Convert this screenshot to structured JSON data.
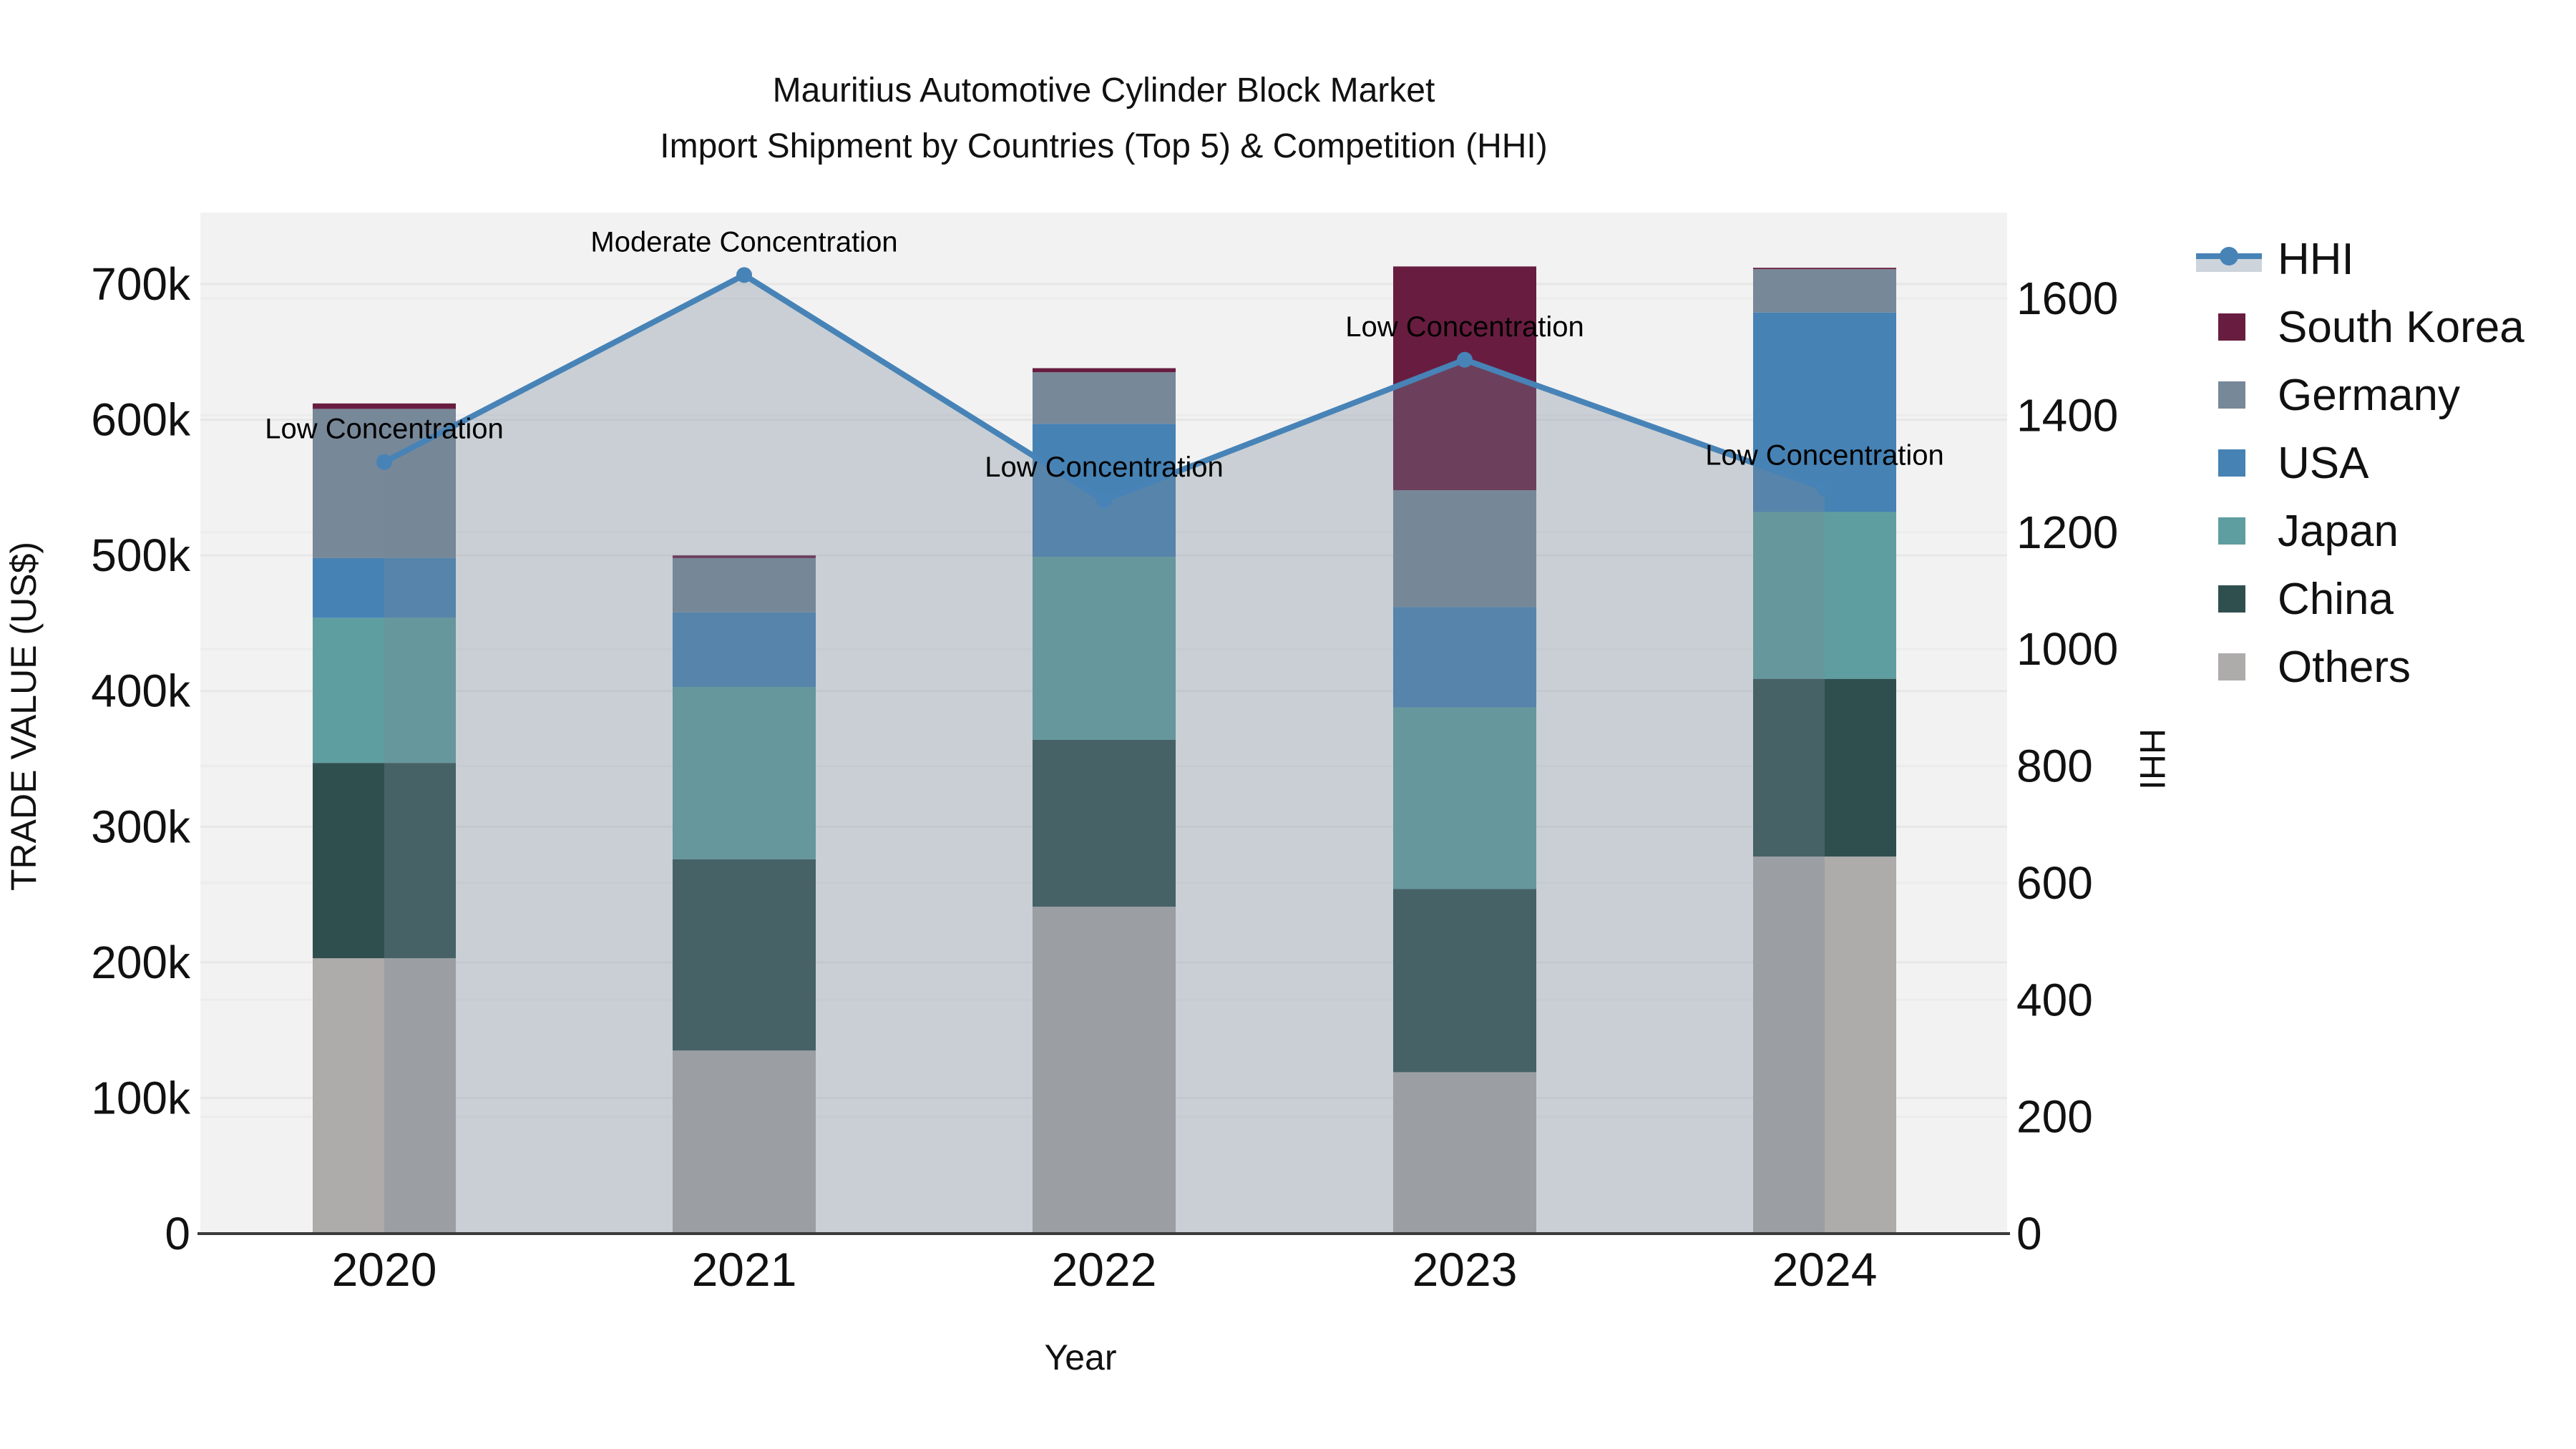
{
  "title": {
    "line1": "Mauritius Automotive Cylinder Block Market",
    "line2": "Import Shipment by Countries (Top 5) & Competition (HHI)"
  },
  "axes": {
    "x_title": "Year",
    "y_left_title": "TRADE VALUE (US$)",
    "y_right_title": "HHI",
    "x_ticks": [
      "2020",
      "2021",
      "2022",
      "2023",
      "2024"
    ],
    "y_left_ticks": [
      {
        "value": 0,
        "label": "0"
      },
      {
        "value": 100000,
        "label": "100k"
      },
      {
        "value": 200000,
        "label": "200k"
      },
      {
        "value": 300000,
        "label": "300k"
      },
      {
        "value": 400000,
        "label": "400k"
      },
      {
        "value": 500000,
        "label": "500k"
      },
      {
        "value": 600000,
        "label": "600k"
      },
      {
        "value": 700000,
        "label": "700k"
      }
    ],
    "y_right_ticks": [
      {
        "value": 0,
        "label": "0"
      },
      {
        "value": 200,
        "label": "200"
      },
      {
        "value": 400,
        "label": "400"
      },
      {
        "value": 600,
        "label": "600"
      },
      {
        "value": 800,
        "label": "800"
      },
      {
        "value": 1000,
        "label": "1000"
      },
      {
        "value": 1200,
        "label": "1200"
      },
      {
        "value": 1400,
        "label": "1400"
      },
      {
        "value": 1600,
        "label": "1600"
      }
    ]
  },
  "chart_data": {
    "type": "bar",
    "stacked": true,
    "categories": [
      "2020",
      "2021",
      "2022",
      "2023",
      "2024"
    ],
    "value_unit": "US$",
    "series": [
      {
        "name": "Others",
        "color": "#aeabab",
        "values": [
          203000,
          135000,
          241000,
          119000,
          278000
        ]
      },
      {
        "name": "China",
        "color": "#2f4f4f",
        "values": [
          144000,
          141000,
          123000,
          135000,
          131000
        ]
      },
      {
        "name": "Japan",
        "color": "#5f9ea0",
        "values": [
          107000,
          127000,
          135000,
          134000,
          123000
        ]
      },
      {
        "name": "USA",
        "color": "#4682b4",
        "values": [
          44000,
          55000,
          98000,
          74000,
          147000
        ]
      },
      {
        "name": "Germany",
        "color": "#778899",
        "values": [
          110000,
          40000,
          38000,
          86000,
          32000
        ]
      },
      {
        "name": "South Korea",
        "color": "#681d40",
        "values": [
          4000,
          2000,
          3000,
          165000,
          1000
        ]
      }
    ],
    "line_series": {
      "name": "HHI",
      "color": "#4783b7",
      "marker_color": "#4783b7",
      "area_fill": "rgba(119,136,153,0.33)",
      "values": [
        1320,
        1640,
        1255,
        1495,
        1275
      ]
    },
    "annotations": [
      {
        "x": "2020",
        "text": "Low Concentration"
      },
      {
        "x": "2021",
        "text": "Moderate Concentration"
      },
      {
        "x": "2022",
        "text": "Low Concentration"
      },
      {
        "x": "2023",
        "text": "Low Concentration"
      },
      {
        "x": "2024",
        "text": "Low Concentration"
      }
    ],
    "y_left_range": [
      0,
      752000
    ],
    "y_right_range": [
      0,
      1747
    ],
    "grid": true,
    "legend_position": "right"
  },
  "legend": {
    "items": [
      {
        "label": "HHI",
        "type": "line",
        "color": "#4783b7",
        "band_color": "#cdd4dc"
      },
      {
        "label": "South Korea",
        "type": "swatch",
        "color": "#681d40"
      },
      {
        "label": "Germany",
        "type": "swatch",
        "color": "#778899"
      },
      {
        "label": "USA",
        "type": "swatch",
        "color": "#4682b4"
      },
      {
        "label": "Japan",
        "type": "swatch",
        "color": "#5f9ea0"
      },
      {
        "label": "China",
        "type": "swatch",
        "color": "#2f4f4f"
      },
      {
        "label": "Others",
        "type": "swatch",
        "color": "#aeabab"
      }
    ]
  },
  "colors": {
    "page_bg": "#ffffff",
    "plot_bg": "#f2f2f2",
    "grid_left": "#e7e7e7",
    "grid_right": "#ececec",
    "axis_line": "#3a3a3a",
    "text": "#111111"
  }
}
